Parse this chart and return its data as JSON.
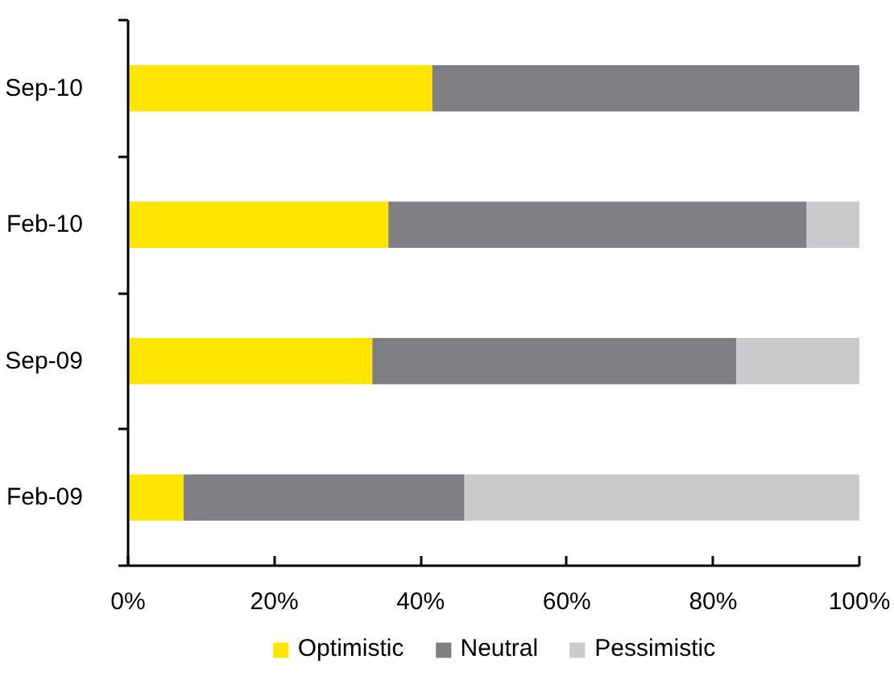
{
  "chart_data": {
    "type": "bar",
    "orientation": "horizontal",
    "stacked": true,
    "categories": [
      "Sep-10",
      "Feb-10",
      "Sep-09",
      "Feb-09"
    ],
    "series": [
      {
        "name": "Optimistic",
        "color": "#ffe600",
        "values": [
          41.6,
          35.6,
          33.4,
          7.6
        ]
      },
      {
        "name": "Neutral",
        "color": "#808084",
        "values": [
          58.4,
          57.2,
          49.8,
          38.4
        ]
      },
      {
        "name": "Pessimistic",
        "color": "#cbcbcd",
        "values": [
          0,
          7.2,
          16.8,
          54.0
        ]
      }
    ],
    "xlim": [
      0,
      100
    ],
    "xticks": [
      {
        "value": 0,
        "label": "0%"
      },
      {
        "value": 20,
        "label": "20%"
      },
      {
        "value": 40,
        "label": "40%"
      },
      {
        "value": 60,
        "label": "60%"
      },
      {
        "value": 80,
        "label": "80%"
      },
      {
        "value": 100,
        "label": "100%"
      }
    ],
    "grid": false,
    "legend": "bottom"
  }
}
